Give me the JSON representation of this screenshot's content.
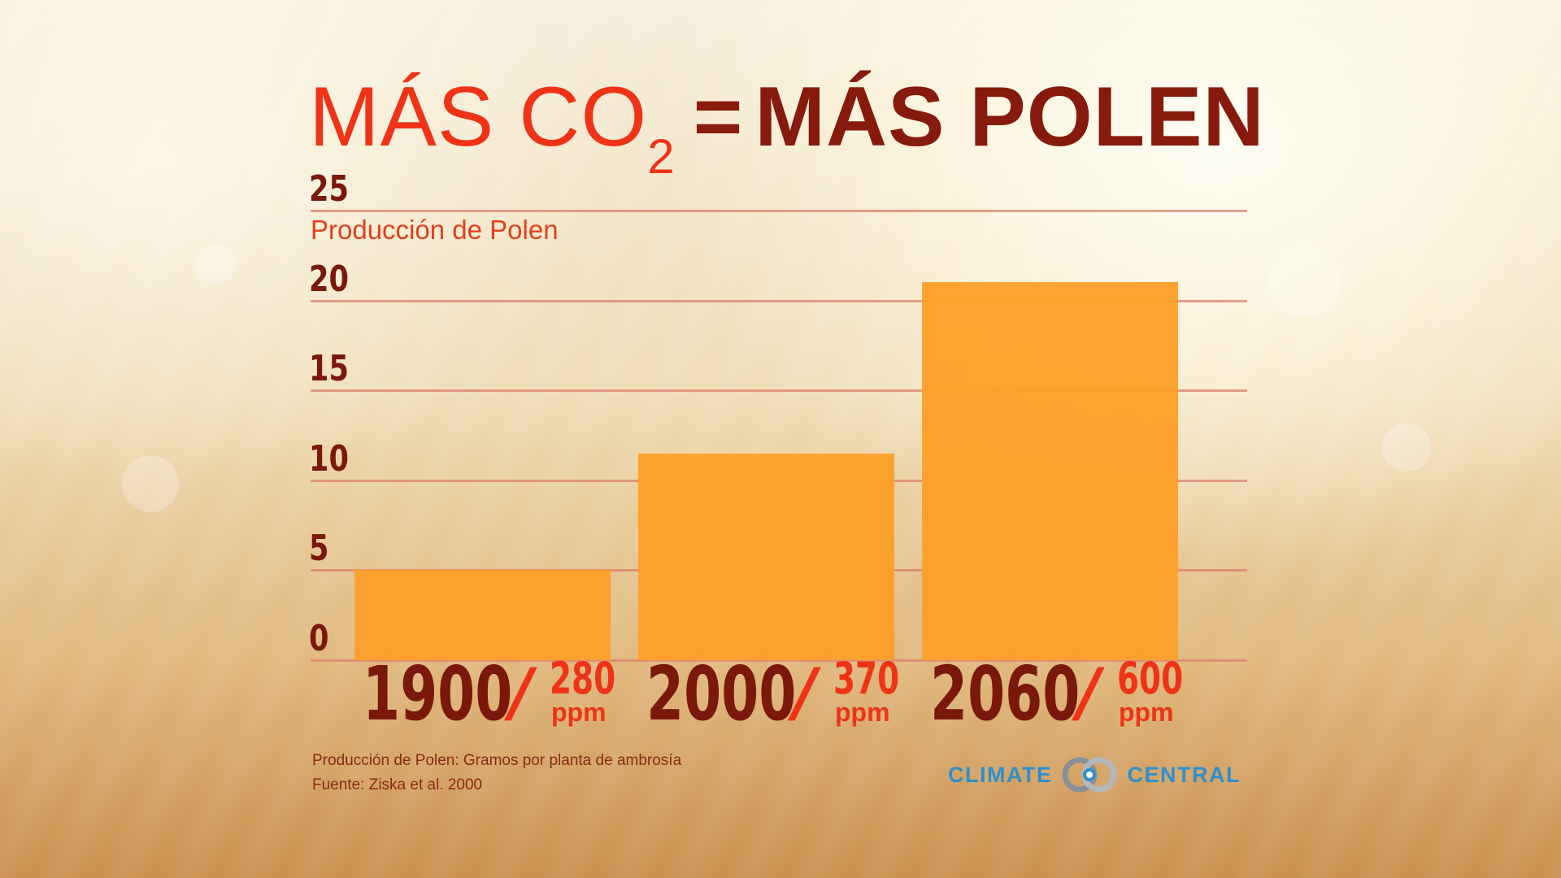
{
  "title": {
    "part1": "MÁS CO",
    "subscript": "2",
    "equals": "=",
    "part2": "MÁS POLEN"
  },
  "chart_data": {
    "type": "bar",
    "ylabel": "Producción de Polen",
    "yticks": [
      "25",
      "20",
      "15",
      "10",
      "5",
      "0"
    ],
    "ylim": [
      0,
      25
    ],
    "grid": true,
    "categories": [
      {
        "year": "1900",
        "separator": "/",
        "co2": "280",
        "unit": "ppm"
      },
      {
        "year": "2000",
        "separator": "/",
        "co2": "370",
        "unit": "ppm"
      },
      {
        "year": "2060",
        "separator": "/",
        "co2": "600",
        "unit": "ppm"
      }
    ],
    "values": [
      5,
      11.5,
      21
    ],
    "bar_color": "#fd9f2a"
  },
  "notes": {
    "line1": "Producción de Polen: Gramos por planta de ambrosía",
    "line2": "Fuente: Ziska et al. 2000"
  },
  "logo": {
    "left_word": "CLIMATE",
    "right_word": "CENTRAL",
    "icon": "climate-central-rings-icon",
    "color": "#2f8fcc"
  }
}
